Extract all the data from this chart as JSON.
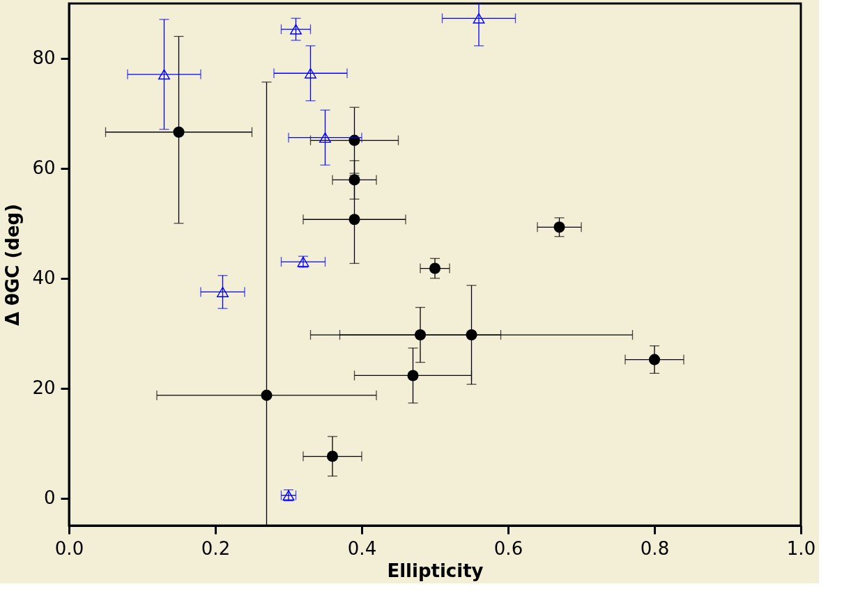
{
  "chart_data": {
    "type": "scatter",
    "xlabel": "Ellipticity",
    "ylabel": "Δ θGC (deg)",
    "xlim": [
      0,
      1.0
    ],
    "ylim": [
      -5,
      90
    ],
    "xticks": [
      {
        "value": 0,
        "label": "0.0"
      },
      0.2,
      0.4,
      0.6,
      0.8,
      {
        "value": 1,
        "label": "1.0"
      }
    ],
    "yticks": [
      0,
      20,
      40,
      60,
      80
    ],
    "grid": false,
    "series": [
      {
        "color": "#000000",
        "marker": "circle",
        "x": [
          0.15,
          0.27,
          0.39,
          0.39,
          0.39,
          0.5,
          0.67,
          0.48,
          0.55,
          0.47,
          0.8,
          0.36
        ],
        "values": [
          66.6,
          18.7,
          65.1,
          57.9,
          50.7,
          41.8,
          49.3,
          29.7,
          29.7,
          22.3,
          25.2,
          7.6
        ],
        "xerrors": [
          0.1,
          0.15,
          0.06,
          0.03,
          0.07,
          0.02,
          0.03,
          0.11,
          0.22,
          0.08,
          0.04,
          0.04
        ],
        "errors": [
          [
            50,
            84
          ],
          [
            -5,
            75.7
          ],
          6,
          3.5,
          8,
          1.8,
          1.7,
          5,
          9,
          5,
          2.5,
          3.6
        ]
      },
      {
        "color": "#0000ff",
        "marker": "triangle",
        "x": [
          0.13,
          0.31,
          0.33,
          0.35,
          0.56,
          0.32,
          0.21,
          0.3
        ],
        "values": [
          77.1,
          85.3,
          77.3,
          65.6,
          87.3,
          43.0,
          37.5,
          0.5
        ],
        "xerrors": [
          0.05,
          0.02,
          0.05,
          0.05,
          0.05,
          0.03,
          0.03,
          0.01
        ],
        "errors": [
          10,
          2,
          5,
          5,
          [
            82.3,
            90
          ],
          1,
          3,
          1
        ]
      }
    ]
  }
}
